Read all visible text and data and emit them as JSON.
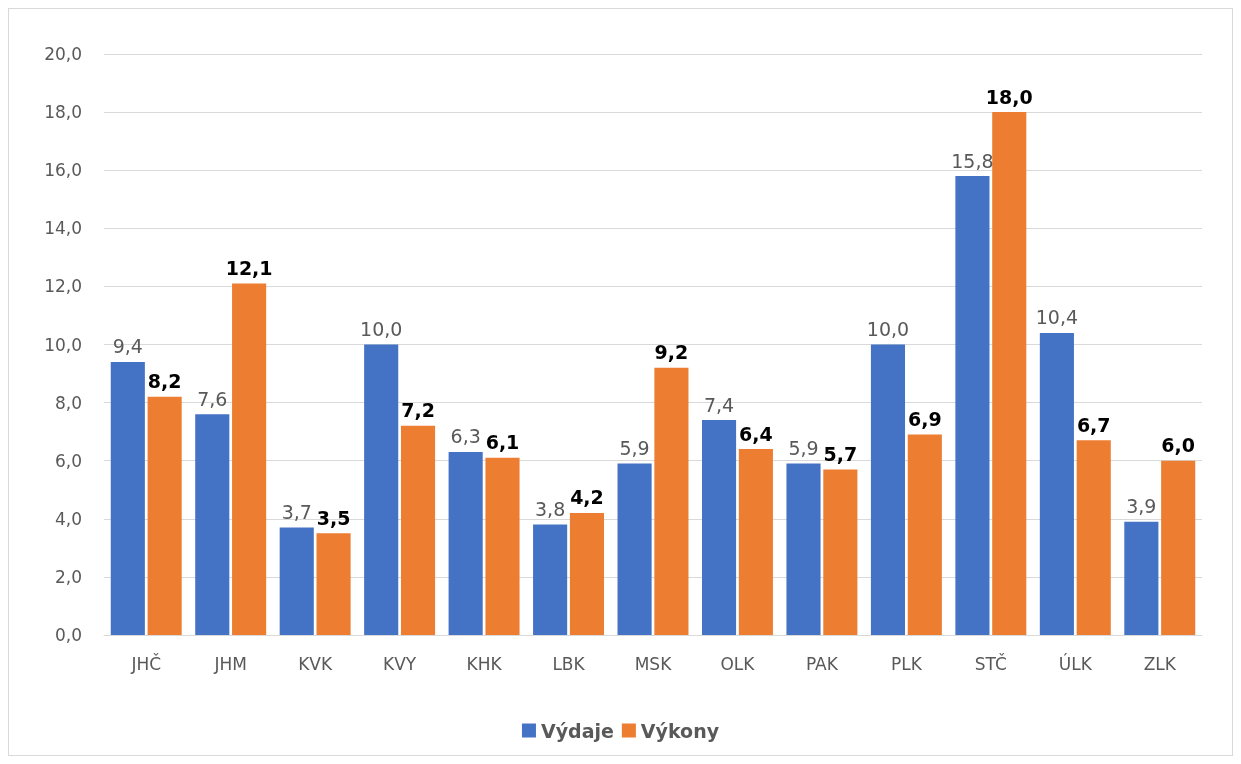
{
  "chart_data": {
    "type": "bar",
    "categories": [
      "JHČ",
      "JHM",
      "KVK",
      "KVY",
      "KHK",
      "LBK",
      "MSK",
      "OLK",
      "PAK",
      "PLK",
      "STČ",
      "ÚLK",
      "ZLK"
    ],
    "series": [
      {
        "name": "Výdaje",
        "color": "#4472c4",
        "values": [
          9.4,
          7.6,
          3.7,
          10.0,
          6.3,
          3.8,
          5.9,
          7.4,
          5.9,
          10.0,
          15.8,
          10.4,
          3.9
        ],
        "value_labels": [
          "9,4",
          "7,6",
          "3,7",
          "10,0",
          "6,3",
          "3,8",
          "5,9",
          "7,4",
          "5,9",
          "10,0",
          "15,8",
          "10,4",
          "3,9"
        ]
      },
      {
        "name": "Výkony",
        "color": "#ed7d31",
        "values": [
          8.2,
          12.1,
          3.5,
          7.2,
          6.1,
          4.2,
          9.2,
          6.4,
          5.7,
          6.9,
          18.0,
          6.7,
          6.0
        ],
        "value_labels": [
          "8,2",
          "12,1",
          "3,5",
          "7,2",
          "6,1",
          "4,2",
          "9,2",
          "6,4",
          "5,7",
          "6,9",
          "18,0",
          "6,7",
          "6,0"
        ]
      }
    ],
    "ylim": [
      0,
      20
    ],
    "yticks": [
      {
        "value": 0,
        "label": "0,0"
      },
      {
        "value": 2,
        "label": "2,0"
      },
      {
        "value": 4,
        "label": "4,0"
      },
      {
        "value": 6,
        "label": "6,0"
      },
      {
        "value": 8,
        "label": "8,0"
      },
      {
        "value": 10,
        "label": "10,0"
      },
      {
        "value": 12,
        "label": "12,0"
      },
      {
        "value": 14,
        "label": "14,0"
      },
      {
        "value": 16,
        "label": "16,0"
      },
      {
        "value": 18,
        "label": "18,0"
      },
      {
        "value": 20,
        "label": "20,0"
      }
    ],
    "grid": "y",
    "legend": "bottom"
  }
}
